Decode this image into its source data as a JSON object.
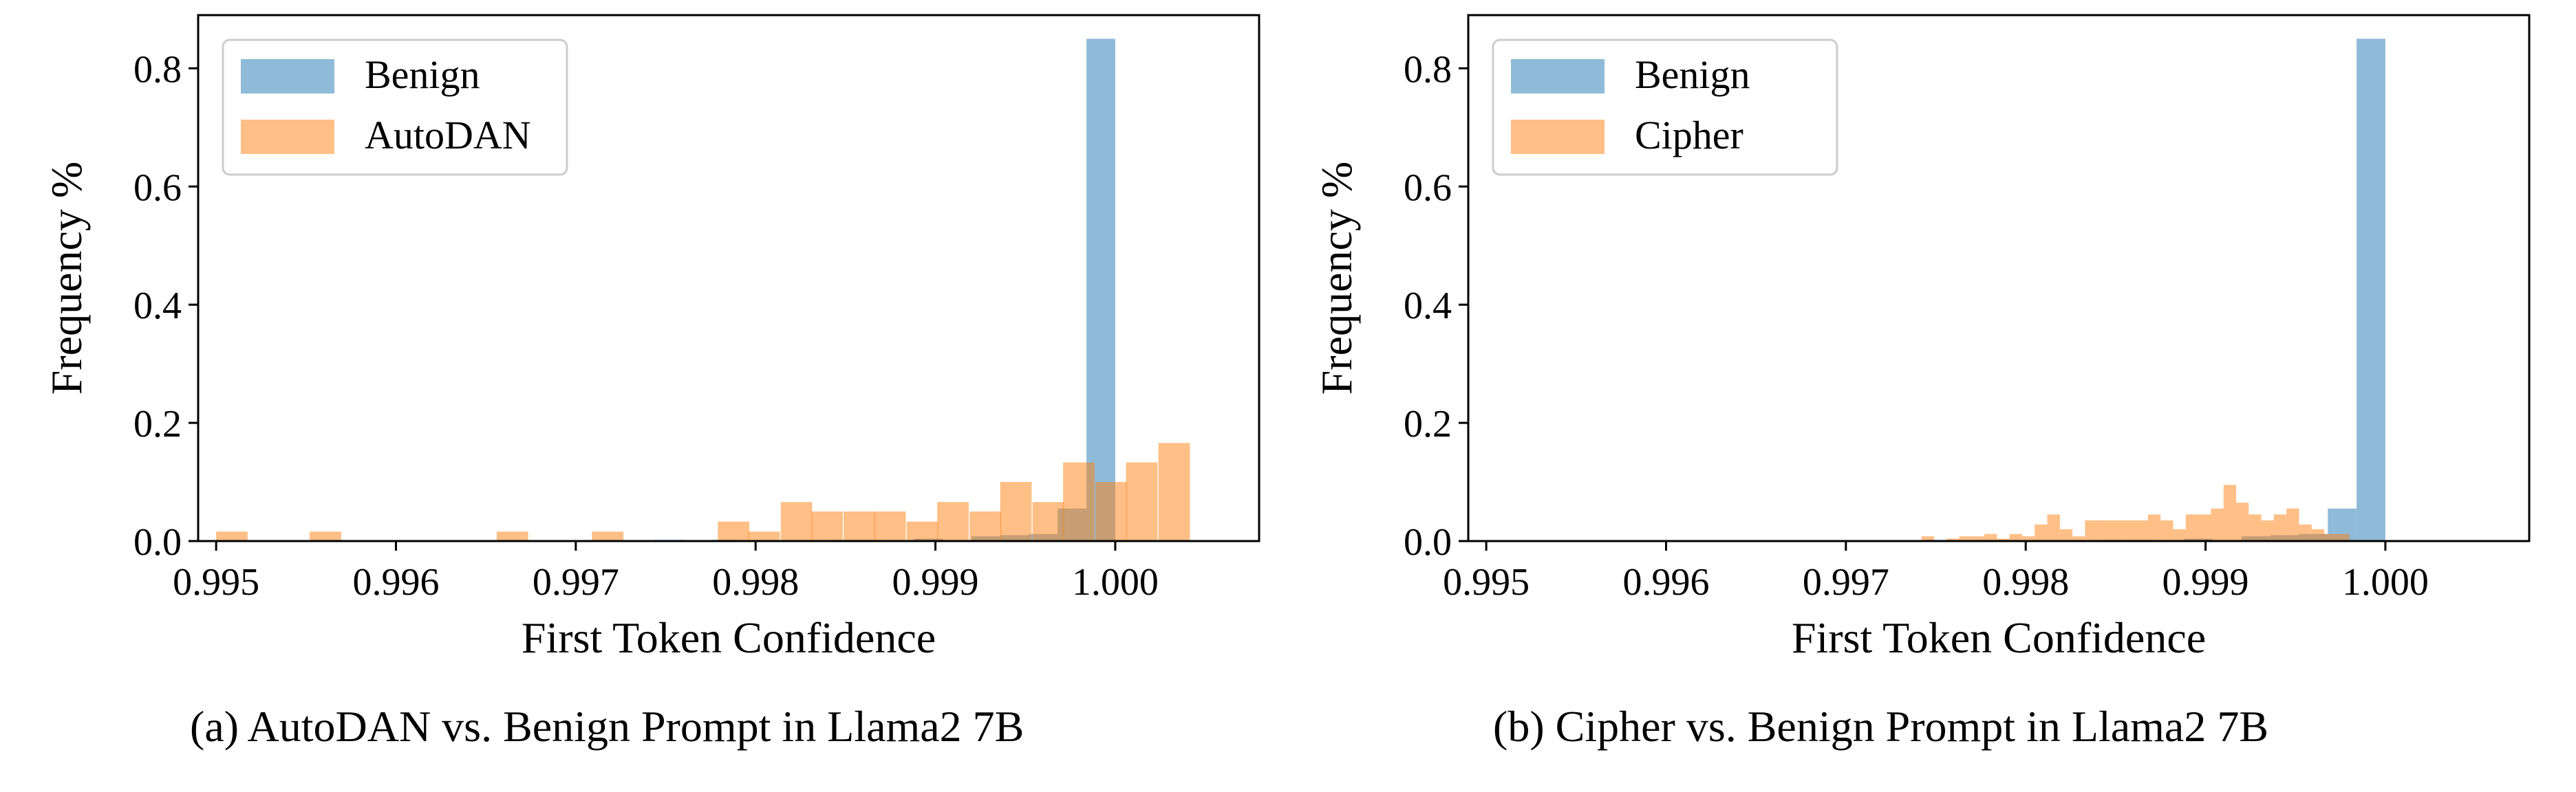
{
  "captions": {
    "a": "(a) AutoDAN vs. Benign Prompt in Llama2 7B",
    "b": "(b) Cipher vs. Benign Prompt in Llama2 7B"
  },
  "colors": {
    "benign": "#1f77b4",
    "attack": "#ff7f0e",
    "alpha": 0.5
  },
  "chart_data": [
    {
      "type": "histogram",
      "title": "",
      "xlabel": "First Token Confidence",
      "ylabel": "Frequency %",
      "xlim": [
        0.9949,
        1.0008
      ],
      "ylim": [
        0,
        0.89
      ],
      "xticks": [
        "0.995",
        "0.996",
        "0.997",
        "0.998",
        "0.999",
        "1.000"
      ],
      "yticks": [
        "0.0",
        "0.2",
        "0.4",
        "0.6",
        "0.8"
      ],
      "legend_position": "top-left",
      "series": [
        {
          "name": "Benign",
          "color": "#1f77b4",
          "bin_width": 0.00016,
          "bins": [
            [
              0.99744,
              0.002
            ],
            [
              0.99776,
              0.002
            ],
            [
              0.9984,
              0.002
            ],
            [
              0.99856,
              0.002
            ],
            [
              0.99888,
              0.004
            ],
            [
              0.9992,
              0.008
            ],
            [
              0.99936,
              0.01
            ],
            [
              0.99952,
              0.012
            ],
            [
              0.99968,
              0.055
            ],
            [
              0.99984,
              0.85
            ]
          ]
        },
        {
          "name": "AutoDAN",
          "color": "#ff7f0e",
          "bin_width": 0.000175,
          "bins": [
            [
              0.995,
              0.016
            ],
            [
              0.99552,
              0.016
            ],
            [
              0.99656,
              0.016
            ],
            [
              0.99709,
              0.016
            ],
            [
              0.99779,
              0.033
            ],
            [
              0.99796,
              0.016
            ],
            [
              0.99814,
              0.066
            ],
            [
              0.99831,
              0.05
            ],
            [
              0.99849,
              0.05
            ],
            [
              0.99866,
              0.05
            ],
            [
              0.99884,
              0.033
            ],
            [
              0.99901,
              0.066
            ],
            [
              0.99919,
              0.05
            ],
            [
              0.99936,
              0.1
            ],
            [
              0.99954,
              0.066
            ],
            [
              0.99971,
              0.133
            ],
            [
              0.99989,
              0.1
            ],
            [
              1.00006,
              0.133
            ],
            [
              1.00024,
              0.166
            ]
          ]
        }
      ]
    },
    {
      "type": "histogram",
      "title": "",
      "xlabel": "First Token Confidence",
      "ylabel": "Frequency %",
      "xlim": [
        0.9949,
        1.0008
      ],
      "ylim": [
        0,
        0.89
      ],
      "xticks": [
        "0.995",
        "0.996",
        "0.997",
        "0.998",
        "0.999",
        "1.000"
      ],
      "yticks": [
        "0.0",
        "0.2",
        "0.4",
        "0.6",
        "0.8"
      ],
      "legend_position": "top-left",
      "series": [
        {
          "name": "Benign",
          "color": "#1f77b4",
          "bin_width": 0.00016,
          "bins": [
            [
              0.99744,
              0.002
            ],
            [
              0.99776,
              0.002
            ],
            [
              0.9984,
              0.002
            ],
            [
              0.99856,
              0.002
            ],
            [
              0.99888,
              0.004
            ],
            [
              0.9992,
              0.008
            ],
            [
              0.99936,
              0.01
            ],
            [
              0.99952,
              0.012
            ],
            [
              0.99968,
              0.055
            ],
            [
              0.99984,
              0.85
            ]
          ]
        },
        {
          "name": "Cipher",
          "color": "#ff7f0e",
          "bin_width": 7e-05,
          "bins": [
            [
              0.99742,
              0.008
            ],
            [
              0.99756,
              0.004
            ],
            [
              0.99763,
              0.008
            ],
            [
              0.9977,
              0.008
            ],
            [
              0.99777,
              0.012
            ],
            [
              0.99784,
              0.004
            ],
            [
              0.99791,
              0.012
            ],
            [
              0.99798,
              0.008
            ],
            [
              0.99805,
              0.028
            ],
            [
              0.99812,
              0.045
            ],
            [
              0.99819,
              0.02
            ],
            [
              0.99826,
              0.008
            ],
            [
              0.99833,
              0.035
            ],
            [
              0.9984,
              0.035
            ],
            [
              0.99847,
              0.035
            ],
            [
              0.99854,
              0.035
            ],
            [
              0.99861,
              0.035
            ],
            [
              0.99868,
              0.045
            ],
            [
              0.99875,
              0.035
            ],
            [
              0.99882,
              0.02
            ],
            [
              0.99889,
              0.045
            ],
            [
              0.99896,
              0.045
            ],
            [
              0.99903,
              0.055
            ],
            [
              0.9991,
              0.095
            ],
            [
              0.99917,
              0.065
            ],
            [
              0.99924,
              0.045
            ],
            [
              0.99931,
              0.035
            ],
            [
              0.99938,
              0.045
            ],
            [
              0.99945,
              0.055
            ],
            [
              0.99952,
              0.028
            ],
            [
              0.99959,
              0.02
            ],
            [
              0.99966,
              0.012
            ],
            [
              0.99973,
              0.012
            ]
          ]
        }
      ]
    }
  ]
}
